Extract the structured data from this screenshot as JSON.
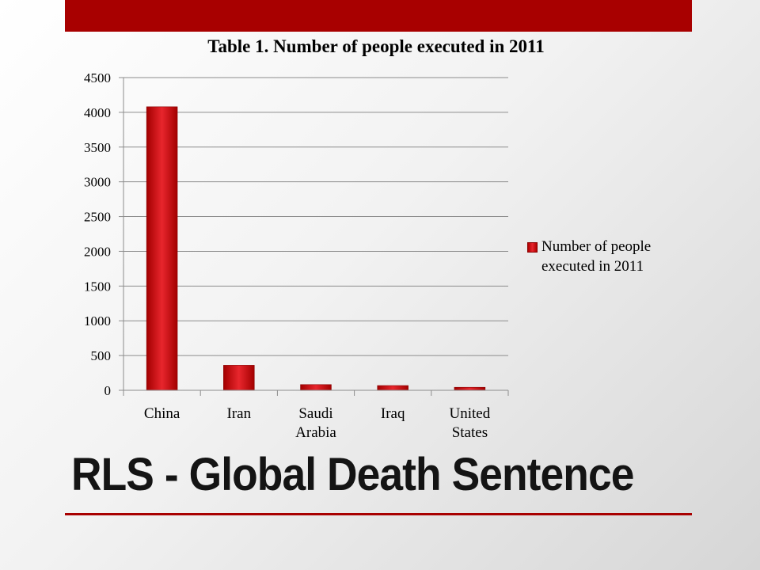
{
  "slide": {
    "title": "RLS - Global Death Sentence",
    "accent_color": "#a80000"
  },
  "chart_data": {
    "type": "bar",
    "title": "Table 1. Number of people executed in 2011",
    "categories": [
      "China",
      "Iran",
      "Saudi Arabia",
      "Iraq",
      "United States"
    ],
    "category_lines": [
      [
        "China"
      ],
      [
        "Iran"
      ],
      [
        "Saudi",
        "Arabia"
      ],
      [
        "Iraq"
      ],
      [
        "United",
        "States"
      ]
    ],
    "series": [
      {
        "name": "Number of people executed in 2011",
        "values": [
          4080,
          360,
          82,
          68,
          43
        ],
        "color": "#d0111a"
      }
    ],
    "ylim": [
      0,
      4500
    ],
    "yticks": [
      0,
      500,
      1000,
      1500,
      2000,
      2500,
      3000,
      3500,
      4000,
      4500
    ],
    "grid": true,
    "legend": "right",
    "legend_lines": [
      "Number of people",
      "executed in 2011"
    ]
  }
}
